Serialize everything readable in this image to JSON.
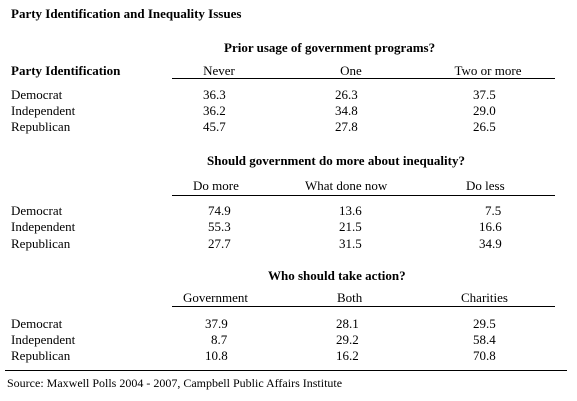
{
  "title": "Party Identification and Inequality Issues",
  "row_header": "Party Identification",
  "sections": [
    {
      "question": "Prior usage of government programs?",
      "columns": [
        "Never",
        "One",
        "Two or more"
      ],
      "rows": [
        {
          "label": "Democrat",
          "values": [
            "36.3",
            "26.3",
            "37.5"
          ]
        },
        {
          "label": "Independent",
          "values": [
            "36.2",
            "34.8",
            "29.0"
          ]
        },
        {
          "label": "Republican",
          "values": [
            "45.7",
            "27.8",
            "26.5"
          ]
        }
      ]
    },
    {
      "question": "Should government do more about inequality?",
      "columns": [
        "Do more",
        "What done now",
        "Do less"
      ],
      "rows": [
        {
          "label": "Democrat",
          "values": [
            "74.9",
            "13.6",
            "7.5"
          ]
        },
        {
          "label": "Independent",
          "values": [
            "55.3",
            "21.5",
            "16.6"
          ]
        },
        {
          "label": "Republican",
          "values": [
            "27.7",
            "31.5",
            "34.9"
          ]
        }
      ]
    },
    {
      "question": "Who should take action?",
      "columns": [
        "Government",
        "Both",
        "Charities"
      ],
      "rows": [
        {
          "label": "Democrat",
          "values": [
            "37.9",
            "28.1",
            "29.5"
          ]
        },
        {
          "label": "Independent",
          "values": [
            "8.7",
            "29.2",
            "58.4"
          ]
        },
        {
          "label": "Republican",
          "values": [
            "10.8",
            "16.2",
            "70.8"
          ]
        }
      ]
    }
  ],
  "source": "Source: Maxwell Polls 2004 - 2007, Campbell Public Affairs Institute"
}
